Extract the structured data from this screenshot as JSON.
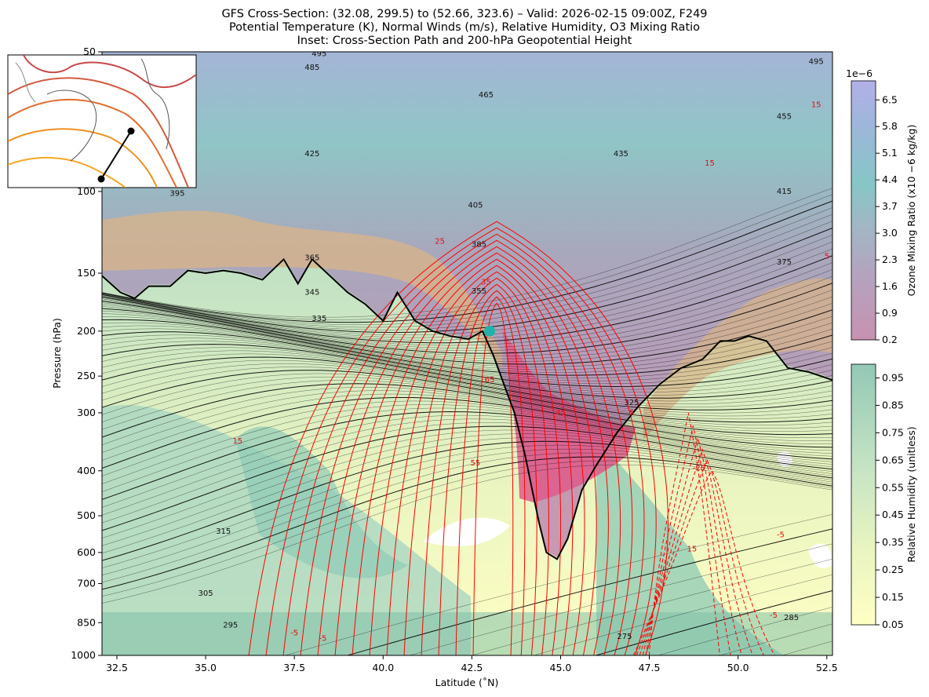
{
  "chart_data": {
    "type": "cross-section",
    "title_lines": [
      "GFS Cross-Section: (32.08, 299.5) to (52.66, 323.6) – Valid: 2026-02-15 09:00Z, F249",
      "Potential Temperature (K), Normal Winds (m/s), Relative Humidity, O3 Mixing Ratio",
      "Inset: Cross-Section Path and 200-hPa Geopotential Height"
    ],
    "xlabel": "Latitude (˚N)",
    "ylabel": "Pressure (hPa)",
    "xlim": [
      32.08,
      52.66
    ],
    "ylim": [
      1000,
      50
    ],
    "y_scale": "log",
    "x_ticks": [
      "32.5",
      "35.0",
      "37.5",
      "40.0",
      "42.5",
      "45.0",
      "47.5",
      "50.0",
      "52.5"
    ],
    "y_ticks": [
      "1000",
      "850",
      "700",
      "600",
      "500",
      "400",
      "300",
      "250",
      "200",
      "150",
      "100",
      "50"
    ],
    "theta_contours": [
      {
        "label": "275",
        "lat": 46.8,
        "p": 910
      },
      {
        "label": "285",
        "lat": 51.5,
        "p": 830
      },
      {
        "label": "295",
        "lat": 35.7,
        "p": 860
      },
      {
        "label": "305",
        "lat": 35.0,
        "p": 735
      },
      {
        "label": "315",
        "lat": 35.5,
        "p": 540
      },
      {
        "label": "325",
        "lat": 47.0,
        "p": 285
      },
      {
        "label": "335",
        "lat": 38.2,
        "p": 188
      },
      {
        "label": "345",
        "lat": 38.0,
        "p": 165
      },
      {
        "label": "355",
        "lat": 42.7,
        "p": 164
      },
      {
        "label": "365",
        "lat": 38.0,
        "p": 139
      },
      {
        "label": "375",
        "lat": 51.3,
        "p": 142
      },
      {
        "label": "385",
        "lat": 42.7,
        "p": 130
      },
      {
        "label": "395",
        "lat": 34.2,
        "p": 101
      },
      {
        "label": "405",
        "lat": 42.6,
        "p": 107
      },
      {
        "label": "415",
        "lat": 51.3,
        "p": 100
      },
      {
        "label": "425",
        "lat": 38.0,
        "p": 83
      },
      {
        "label": "435",
        "lat": 46.7,
        "p": 83
      },
      {
        "label": "455",
        "lat": 51.3,
        "p": 69
      },
      {
        "label": "465",
        "lat": 42.9,
        "p": 62
      },
      {
        "label": "485",
        "lat": 38.0,
        "p": 54
      },
      {
        "label": "495",
        "lat": 38.2,
        "p": 50.5
      },
      {
        "label": "495",
        "lat": 52.2,
        "p": 52.5
      }
    ],
    "wind_labels": [
      {
        "label": "15",
        "lat": 35.9,
        "p": 345
      },
      {
        "label": "25",
        "lat": 41.6,
        "p": 128
      },
      {
        "label": "35",
        "lat": 42.9,
        "p": 157
      },
      {
        "label": "55",
        "lat": 42.6,
        "p": 385
      },
      {
        "label": "65",
        "lat": 43.0,
        "p": 255
      },
      {
        "label": "45",
        "lat": 45.0,
        "p": 300
      },
      {
        "label": "5",
        "lat": 47.0,
        "p": 300
      },
      {
        "label": "15",
        "lat": 49.2,
        "p": 87
      },
      {
        "label": "15",
        "lat": 52.2,
        "p": 65
      },
      {
        "label": "5",
        "lat": 52.5,
        "p": 138
      },
      {
        "label": "-25",
        "lat": 48.9,
        "p": 395
      },
      {
        "label": "-5",
        "lat": 51.2,
        "p": 550
      },
      {
        "label": "15",
        "lat": 48.7,
        "p": 590
      },
      {
        "label": "-5",
        "lat": 37.5,
        "p": 895
      },
      {
        "label": "-5",
        "lat": 38.3,
        "p": 920
      },
      {
        "label": "-5",
        "lat": 51.0,
        "p": 820
      }
    ],
    "tropopause": {
      "lat": [
        32.08,
        32.6,
        33.0,
        33.4,
        34.0,
        34.5,
        35.0,
        35.5,
        36.0,
        36.6,
        37.2,
        37.6,
        38.0,
        38.5,
        39.0,
        39.5,
        40.0,
        40.4,
        40.9,
        41.4,
        41.9,
        42.4,
        42.8,
        43.1,
        43.4,
        43.7,
        44.0,
        44.2,
        44.4,
        44.6,
        44.9,
        45.2,
        45.6,
        46.0,
        46.6,
        47.2,
        47.8,
        48.4,
        49.0,
        49.5,
        49.9,
        50.3,
        50.8,
        51.4,
        52.0,
        52.66
      ],
      "p": [
        152,
        165,
        170,
        160,
        160,
        148,
        150,
        148,
        150,
        155,
        140,
        158,
        140,
        152,
        165,
        175,
        190,
        165,
        190,
        200,
        205,
        208,
        200,
        225,
        260,
        300,
        370,
        440,
        520,
        600,
        620,
        560,
        440,
        390,
        330,
        290,
        260,
        240,
        230,
        210,
        210,
        205,
        210,
        240,
        245,
        255
      ]
    },
    "marker_point": {
      "lat": 43.0,
      "p": 200,
      "color": "#20b2aa"
    },
    "colorbars": [
      {
        "label": "Ozone Mixing Ratio (x10 −6 kg/kg)",
        "scale_note": "1e−6",
        "ticks": [
          "0.2",
          "0.9",
          "1.6",
          "2.3",
          "3.0",
          "3.7",
          "4.4",
          "5.1",
          "5.8",
          "6.5"
        ],
        "range": [
          0.2,
          7.0
        ]
      },
      {
        "label": "Relative Humidity (unitless)",
        "ticks": [
          "0.05",
          "0.15",
          "0.25",
          "0.35",
          "0.45",
          "0.55",
          "0.65",
          "0.75",
          "0.85",
          "0.95"
        ],
        "range": [
          0.05,
          1.0
        ]
      }
    ],
    "inset": {
      "description_from_title": "Cross-Section Path and 200-hPa Geopotential Height",
      "path_start": [
        32.08,
        299.5
      ],
      "path_end": [
        52.66,
        323.6
      ]
    }
  },
  "colors": {
    "theta": "#000000",
    "wind_positive": "#ff0000",
    "wind_negative": "#ff0000",
    "rh_low": "#ffffcc",
    "rh_high": "#66b8a0",
    "ozone_low": "#c8a0b8",
    "ozone_high": "#aab0e8",
    "tropopause": "#000000"
  }
}
